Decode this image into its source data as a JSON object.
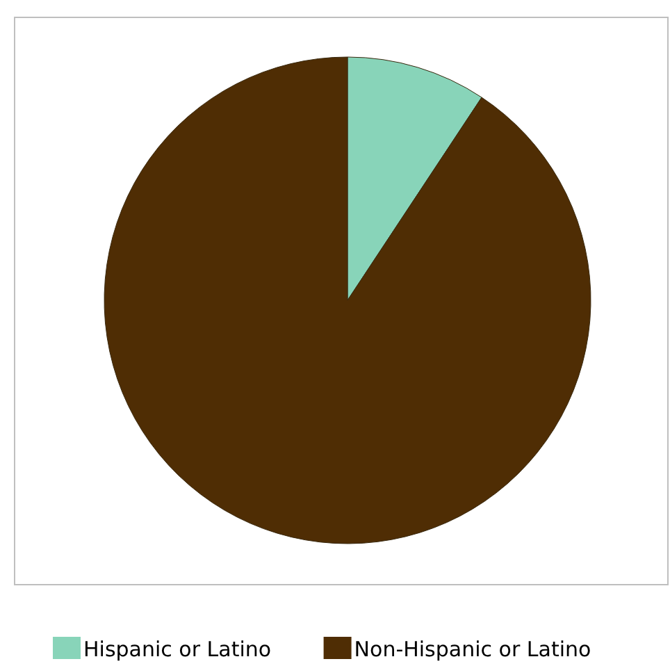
{
  "chart_data": {
    "type": "pie",
    "categories": [
      "Hispanic or Latino",
      "Non-Hispanic or Latino"
    ],
    "values": [
      9.3,
      90.7
    ],
    "colors": [
      "#88d4b9",
      "#4f2d04"
    ],
    "legend": "bottom"
  }
}
